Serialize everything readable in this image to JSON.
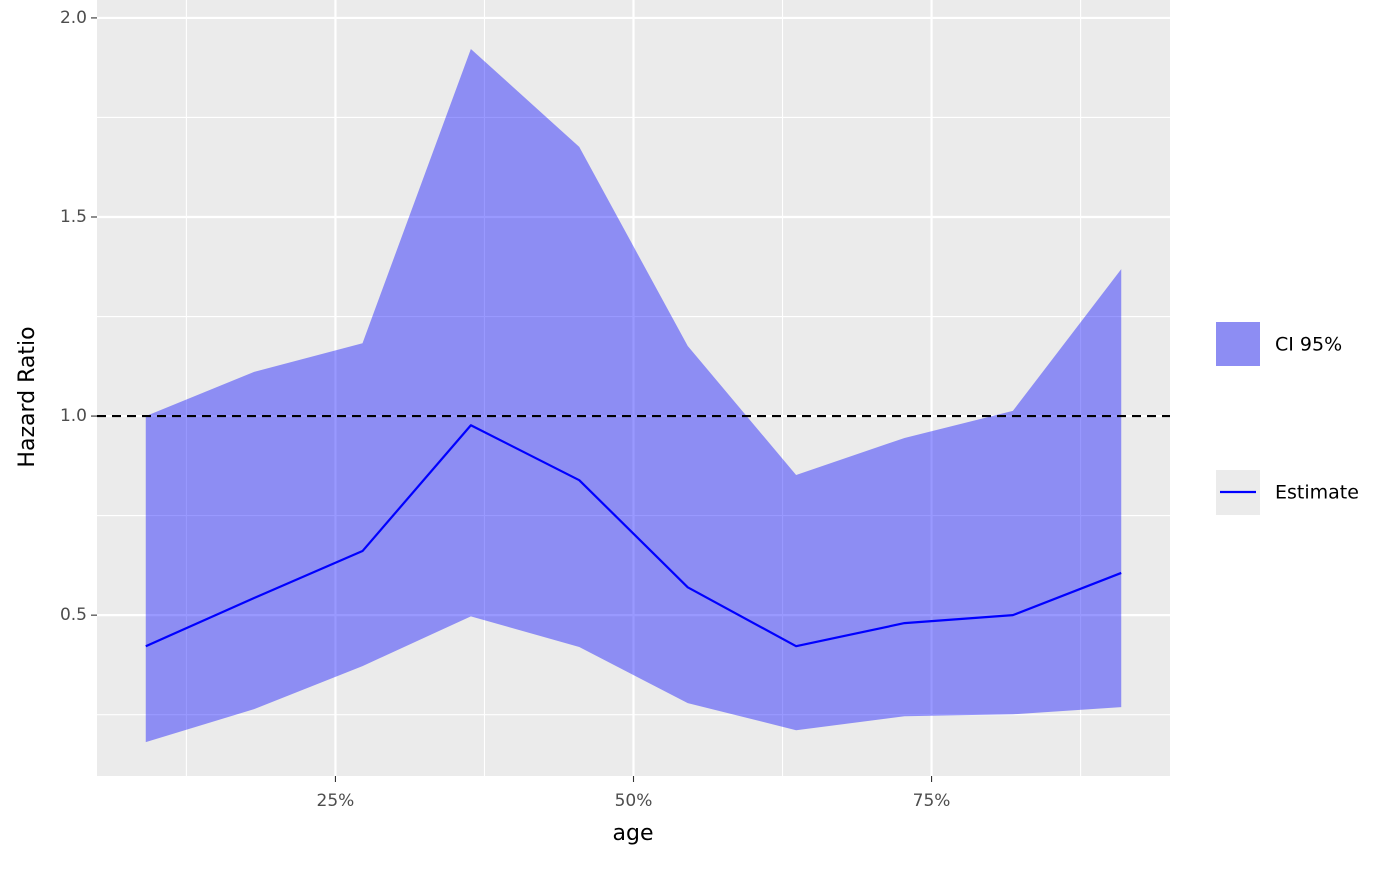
{
  "chart_data": {
    "type": "line",
    "x_label": "age",
    "y_label": "Hazard Ratio",
    "x": [
      9.09,
      18.18,
      27.27,
      36.36,
      45.45,
      54.55,
      63.64,
      72.73,
      81.82,
      90.91
    ],
    "band": {
      "name": "CI 95%",
      "color": "#0000ff",
      "opacity": 0.4,
      "lower": [
        0.181,
        0.264,
        0.372,
        0.497,
        0.42,
        0.279,
        0.211,
        0.246,
        0.251,
        0.269
      ],
      "upper": [
        1.0,
        1.111,
        1.183,
        1.922,
        1.676,
        1.176,
        0.852,
        0.945,
        1.013,
        1.369
      ]
    },
    "series": [
      {
        "name": "Estimate",
        "color": "#0000ff",
        "values": [
          0.422,
          0.543,
          0.661,
          0.977,
          0.839,
          0.57,
          0.422,
          0.48,
          0.5,
          0.606
        ]
      }
    ],
    "reference_line": {
      "value": 1,
      "color": "#000000",
      "dashed": true
    },
    "xlim": [
      5,
      95
    ],
    "ylim": [
      0.096,
      2.045
    ],
    "xticks": [
      {
        "value": 25,
        "label": "25%"
      },
      {
        "value": 50,
        "label": "50%"
      },
      {
        "value": 75,
        "label": "75%"
      }
    ],
    "yticks": [
      0.5,
      {
        "value": 1,
        "label": "1.0"
      },
      1.5,
      {
        "value": 2,
        "label": "2.0"
      }
    ],
    "xminorticks": [
      12.5,
      37.5,
      62.5,
      87.5
    ],
    "yminorticks": [
      0.25,
      0.75,
      1.25,
      1.75
    ],
    "grid": true
  }
}
